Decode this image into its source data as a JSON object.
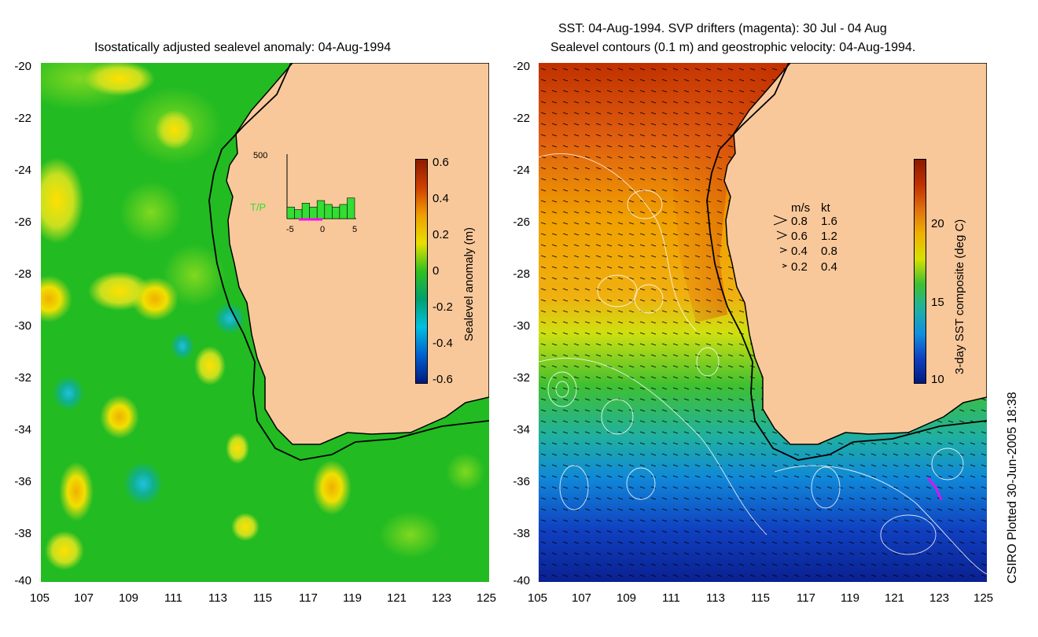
{
  "left_panel": {
    "title": "Isostatically adjusted sealevel anomaly: 04-Aug-1994",
    "y_ticks": [
      "-20",
      "-22",
      "-24",
      "-26",
      "-28",
      "-30",
      "-32",
      "-34",
      "-36",
      "-38",
      "-40"
    ],
    "x_ticks": [
      "105",
      "107",
      "109",
      "111",
      "113",
      "115",
      "117",
      "119",
      "121",
      "123",
      "125"
    ],
    "colorbar": {
      "label": "Sealevel anomaly (m)",
      "ticks": [
        "0.6",
        "0.4",
        "0.2",
        "0",
        "-0.2",
        "-0.4",
        "-0.6"
      ],
      "colors": [
        "#8b1a00",
        "#d04000",
        "#f0a000",
        "#e8e000",
        "#30c020",
        "#00a070",
        "#00c0e0",
        "#0060d0",
        "#001a80"
      ]
    },
    "inset": {
      "top_label": "500",
      "series_label": "T/P",
      "x_ticks": [
        "-5",
        "0",
        "5"
      ],
      "bar_values": [
        90,
        70,
        120,
        90,
        140,
        110,
        90,
        110,
        160
      ],
      "bar_color": "#33dd33",
      "marker_color": "#ff00ff"
    },
    "ocean_color": "#22bb22",
    "land_color": "#f9c89a"
  },
  "right_panel": {
    "title_line1": "SST: 04-Aug-1994. SVP drifters (magenta): 30 Jul - 04 Aug",
    "title_line2": "Sealevel contours (0.1 m) and geostrophic velocity: 04-Aug-1994.",
    "y_ticks": [
      "-20",
      "-22",
      "-24",
      "-26",
      "-28",
      "-30",
      "-32",
      "-34",
      "-36",
      "-38",
      "-40"
    ],
    "x_ticks": [
      "105",
      "107",
      "109",
      "111",
      "113",
      "115",
      "117",
      "119",
      "121",
      "123",
      "125"
    ],
    "colorbar": {
      "label": "3-day SST composite (deg C)",
      "ticks": [
        "20",
        "15",
        "10"
      ],
      "colors": [
        "#8b1a00",
        "#c03000",
        "#e07010",
        "#f0b000",
        "#d8e000",
        "#40c030",
        "#20b0a0",
        "#1090e0",
        "#1040c0",
        "#001a80"
      ]
    },
    "velocity_legend": {
      "header_ms": "m/s",
      "header_kt": "kt",
      "rows": [
        {
          "ms": "0.8",
          "kt": "1.6"
        },
        {
          "ms": "0.6",
          "kt": "1.2"
        },
        {
          "ms": "0.4",
          "kt": "0.8"
        },
        {
          "ms": "0.2",
          "kt": "0.4"
        }
      ]
    },
    "land_color": "#f9c89a"
  },
  "footer_credit": "CSIRO Plotted 30-Jun-2005 18:38"
}
